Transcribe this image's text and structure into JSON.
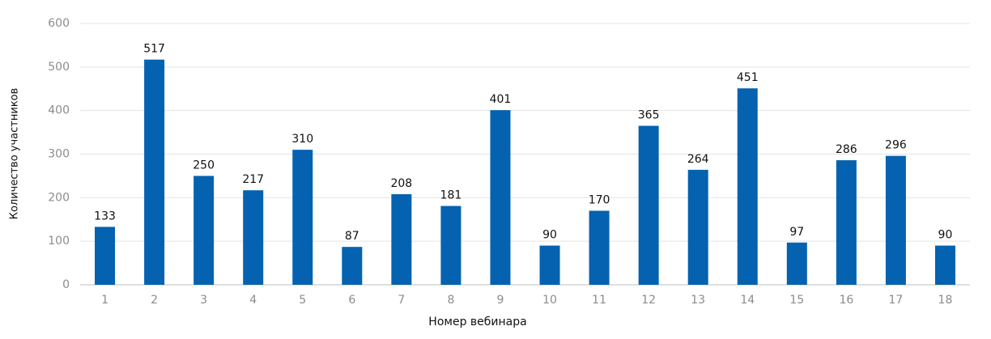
{
  "chart_data": {
    "type": "bar",
    "x_label": "Номер вебинара",
    "y_label": "Количество участников",
    "categories": [
      "1",
      "2",
      "3",
      "4",
      "5",
      "6",
      "7",
      "8",
      "9",
      "10",
      "11",
      "12",
      "13",
      "14",
      "15",
      "16",
      "17",
      "18"
    ],
    "values": [
      133,
      517,
      250,
      217,
      310,
      87,
      208,
      181,
      401,
      90,
      170,
      365,
      264,
      451,
      97,
      286,
      296,
      90
    ],
    "color": "#0562b0",
    "ylim": [
      0,
      600
    ],
    "yticks": [
      0,
      100,
      200,
      300,
      400,
      500,
      600
    ],
    "grid": true
  }
}
